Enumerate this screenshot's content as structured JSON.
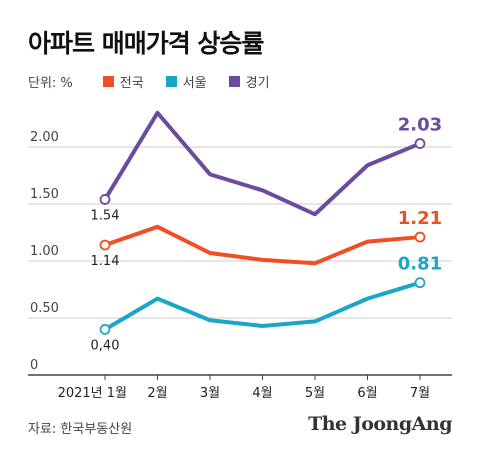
{
  "title": "아파트 매매가격 상승률",
  "unit_label": "단위: %",
  "source": "자료: 한국부동산원",
  "brand": "The JoongAng",
  "colors": {
    "전국": "#f04e23",
    "서울": "#1aa7c7",
    "경기": "#6a4ba0",
    "axis": "#444444",
    "grid": "#cccccc"
  },
  "chart_data": {
    "type": "line",
    "categories": [
      "2021년 1월",
      "2월",
      "3월",
      "4월",
      "5월",
      "6월",
      "7월"
    ],
    "y_ticks": [
      "0",
      "0.50",
      "1.00",
      "1.50",
      "2.00"
    ],
    "ylim": [
      0,
      2.5
    ],
    "grid": true,
    "series": [
      {
        "name": "전국",
        "values": [
          1.14,
          1.3,
          1.07,
          1.01,
          0.98,
          1.17,
          1.21
        ],
        "labels": {
          "0": "1.14",
          "6": "1.21"
        }
      },
      {
        "name": "서울",
        "values": [
          0.4,
          0.67,
          0.48,
          0.43,
          0.47,
          0.67,
          0.81
        ],
        "labels": {
          "0": "0,40",
          "6": "0.81"
        }
      },
      {
        "name": "경기",
        "values": [
          1.54,
          2.3,
          1.76,
          1.62,
          1.41,
          1.84,
          2.03
        ],
        "labels": {
          "0": "1.54",
          "6": "2.03"
        }
      }
    ]
  }
}
